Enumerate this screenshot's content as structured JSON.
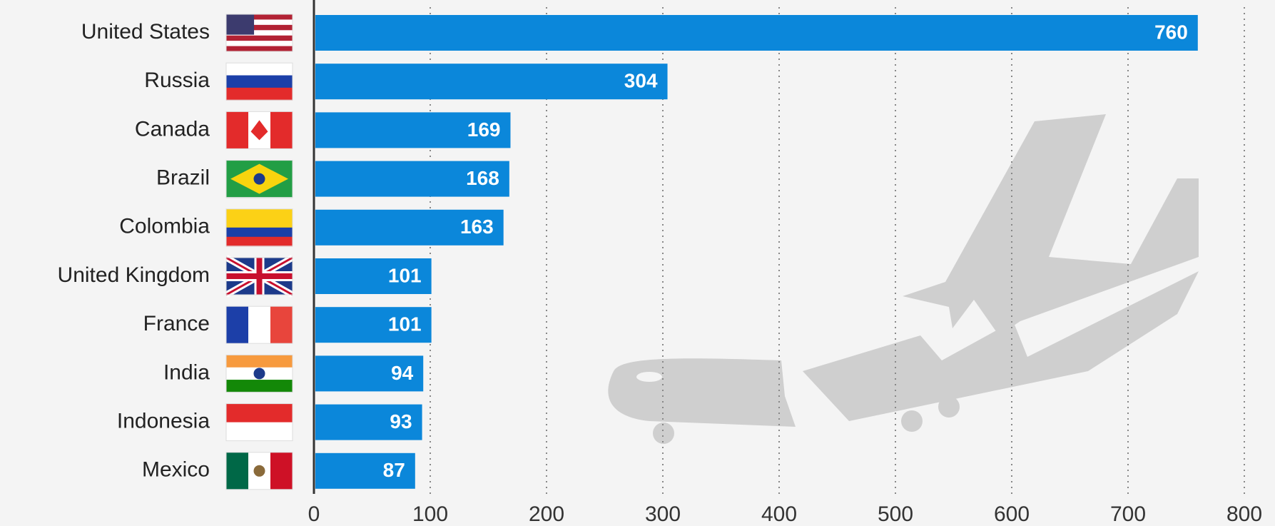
{
  "chart_data": {
    "type": "bar",
    "orientation": "horizontal",
    "categories": [
      "United States",
      "Russia",
      "Canada",
      "Brazil",
      "Colombia",
      "United Kingdom",
      "France",
      "India",
      "Indonesia",
      "Mexico"
    ],
    "values": [
      760,
      304,
      169,
      168,
      163,
      101,
      101,
      94,
      93,
      87
    ],
    "color": "#0b87da",
    "xlim": [
      0,
      800
    ],
    "xticks": [
      0,
      100,
      200,
      300,
      400,
      500,
      600,
      700,
      800
    ],
    "grid": true
  }
}
